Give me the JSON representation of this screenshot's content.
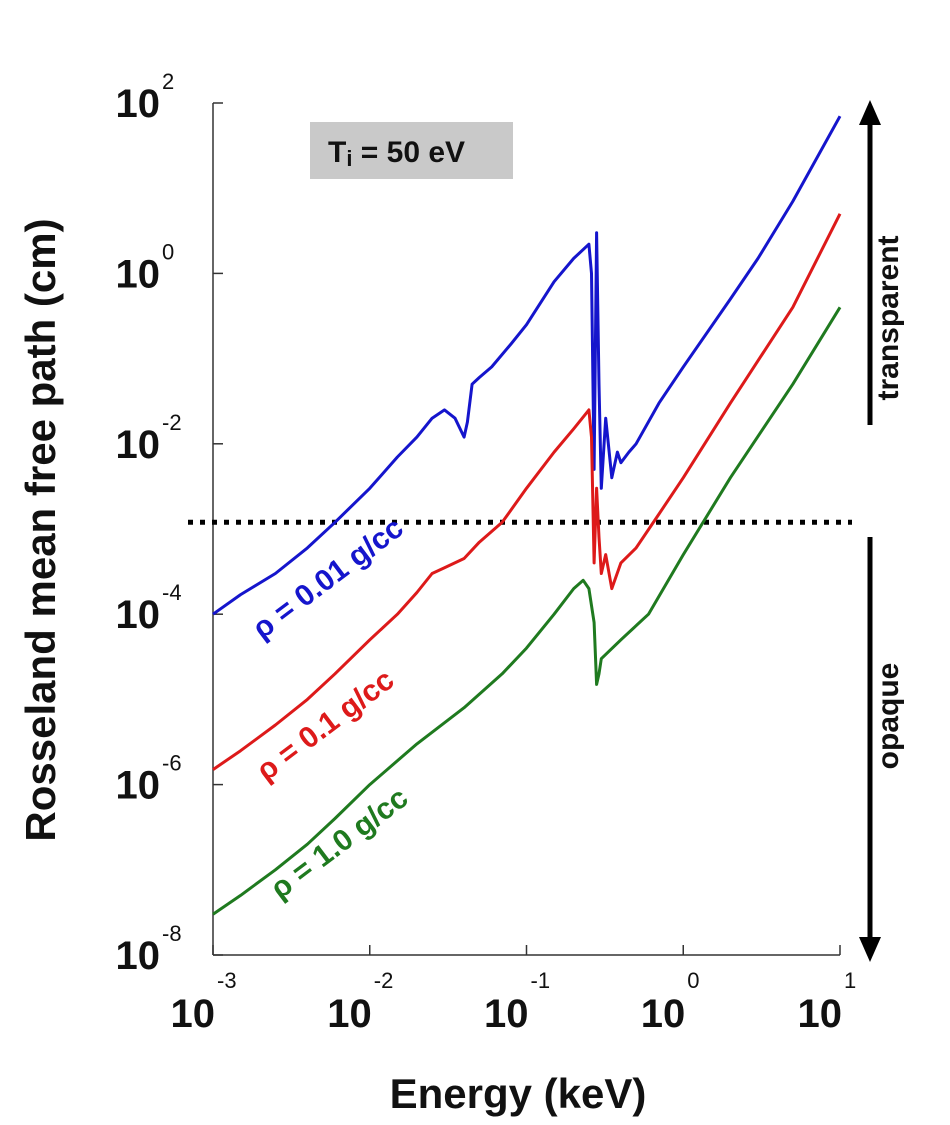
{
  "chart_data": {
    "type": "line",
    "title": "",
    "xlabel": "Energy (keV)",
    "ylabel": "Rosseland mean free path (cm)",
    "xscale": "log",
    "yscale": "log",
    "xlim": [
      0.001,
      10
    ],
    "ylim": [
      1e-08,
      100
    ],
    "x_ticks": [
      {
        "base": "10",
        "exp": "-3",
        "value": 0.001
      },
      {
        "base": "10",
        "exp": "-2",
        "value": 0.01
      },
      {
        "base": "10",
        "exp": "-1",
        "value": 0.1
      },
      {
        "base": "10",
        "exp": "0",
        "value": 1
      },
      {
        "base": "10",
        "exp": "1",
        "value": 10
      }
    ],
    "y_ticks": [
      {
        "base": "10",
        "exp": "-8",
        "value": 1e-08
      },
      {
        "base": "10",
        "exp": "-6",
        "value": 1e-06
      },
      {
        "base": "10",
        "exp": "-4",
        "value": 0.0001
      },
      {
        "base": "10",
        "exp": "-2",
        "value": 0.01
      },
      {
        "base": "10",
        "exp": "0",
        "value": 1
      },
      {
        "base": "10",
        "exp": "2",
        "value": 100
      }
    ],
    "annotation": {
      "text_main": "T",
      "text_sub": "i",
      "text_rest": " = 50 eV"
    },
    "threshold": {
      "value": 0.0012,
      "style": "dotted"
    },
    "side_labels": {
      "upper": "transparent",
      "lower": "opaque"
    },
    "series": [
      {
        "name": "ρ = 0.01 g/cc",
        "color": "#1515cc",
        "points": [
          [
            0.001,
            0.0001
          ],
          [
            0.0015,
            0.00017
          ],
          [
            0.0025,
            0.0003
          ],
          [
            0.004,
            0.0006
          ],
          [
            0.006,
            0.0012
          ],
          [
            0.01,
            0.003
          ],
          [
            0.015,
            0.007
          ],
          [
            0.02,
            0.012
          ],
          [
            0.025,
            0.02
          ],
          [
            0.03,
            0.025
          ],
          [
            0.035,
            0.02
          ],
          [
            0.04,
            0.012
          ],
          [
            0.042,
            0.018
          ],
          [
            0.045,
            0.05
          ],
          [
            0.05,
            0.06
          ],
          [
            0.06,
            0.08
          ],
          [
            0.08,
            0.15
          ],
          [
            0.1,
            0.25
          ],
          [
            0.15,
            0.8
          ],
          [
            0.2,
            1.5
          ],
          [
            0.25,
            2.2
          ],
          [
            0.26,
            1.0
          ],
          [
            0.27,
            0.005
          ],
          [
            0.28,
            3.0
          ],
          [
            0.29,
            0.05
          ],
          [
            0.3,
            0.003
          ],
          [
            0.32,
            0.02
          ],
          [
            0.35,
            0.004
          ],
          [
            0.38,
            0.008
          ],
          [
            0.4,
            0.006
          ],
          [
            0.45,
            0.008
          ],
          [
            0.5,
            0.01
          ],
          [
            0.7,
            0.03
          ],
          [
            1,
            0.08
          ],
          [
            2,
            0.5
          ],
          [
            3,
            1.5
          ],
          [
            5,
            7
          ],
          [
            10,
            70
          ]
        ]
      },
      {
        "name": "ρ = 0.1 g/cc",
        "color": "#dd1a1a",
        "points": [
          [
            0.001,
            1.5e-06
          ],
          [
            0.0015,
            2.5e-06
          ],
          [
            0.0025,
            5e-06
          ],
          [
            0.004,
            1e-05
          ],
          [
            0.006,
            2e-05
          ],
          [
            0.01,
            5e-05
          ],
          [
            0.015,
            0.0001
          ],
          [
            0.02,
            0.00018
          ],
          [
            0.025,
            0.0003
          ],
          [
            0.03,
            0.00035
          ],
          [
            0.04,
            0.00045
          ],
          [
            0.05,
            0.0007
          ],
          [
            0.07,
            0.0012
          ],
          [
            0.1,
            0.003
          ],
          [
            0.15,
            0.008
          ],
          [
            0.2,
            0.015
          ],
          [
            0.25,
            0.025
          ],
          [
            0.26,
            0.012
          ],
          [
            0.27,
            0.0004
          ],
          [
            0.28,
            0.003
          ],
          [
            0.29,
            0.0008
          ],
          [
            0.3,
            0.0003
          ],
          [
            0.32,
            0.0005
          ],
          [
            0.35,
            0.0002
          ],
          [
            0.4,
            0.0004
          ],
          [
            0.5,
            0.0006
          ],
          [
            0.7,
            0.0015
          ],
          [
            1,
            0.004
          ],
          [
            2,
            0.03
          ],
          [
            5,
            0.4
          ],
          [
            10,
            5
          ]
        ]
      },
      {
        "name": "ρ = 1.0 g/cc",
        "color": "#1f7a1f",
        "points": [
          [
            0.001,
            3e-08
          ],
          [
            0.0015,
            5e-08
          ],
          [
            0.0025,
            1e-07
          ],
          [
            0.004,
            2e-07
          ],
          [
            0.006,
            4e-07
          ],
          [
            0.01,
            1e-06
          ],
          [
            0.02,
            3e-06
          ],
          [
            0.04,
            8e-06
          ],
          [
            0.07,
            2e-05
          ],
          [
            0.1,
            4e-05
          ],
          [
            0.15,
            0.0001
          ],
          [
            0.2,
            0.0002
          ],
          [
            0.23,
            0.00025
          ],
          [
            0.25,
            0.0002
          ],
          [
            0.27,
            8e-05
          ],
          [
            0.28,
            1.5e-05
          ],
          [
            0.29,
            2e-05
          ],
          [
            0.3,
            3e-05
          ],
          [
            0.4,
            5e-05
          ],
          [
            0.6,
            0.0001
          ],
          [
            1,
            0.0005
          ],
          [
            2,
            0.004
          ],
          [
            5,
            0.05
          ],
          [
            10,
            0.4
          ]
        ]
      }
    ]
  }
}
